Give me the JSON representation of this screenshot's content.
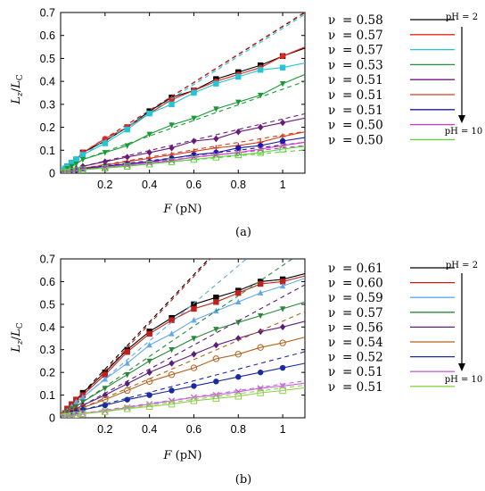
{
  "chart_data": [
    {
      "type": "scatter",
      "panel_label": "(a)",
      "xlabel": "F (pN)",
      "ylabel": "Lz/LC",
      "xlim": [
        0,
        1.1
      ],
      "ylim": [
        0,
        0.7
      ],
      "xticks": [
        "0.2",
        "0.4",
        "0.6",
        "0.8",
        "1"
      ],
      "yticks": [
        "0",
        "0.1",
        "0.2",
        "0.3",
        "0.4",
        "0.5",
        "0.6",
        "0.7"
      ],
      "legend_prefix": "ν",
      "ph_top": "pH = 2",
      "ph_bottom": "pH = 10",
      "x": [
        0.01,
        0.02,
        0.03,
        0.05,
        0.07,
        0.1,
        0.2,
        0.3,
        0.4,
        0.5,
        0.6,
        0.7,
        0.8,
        0.9,
        1.0
      ],
      "series": [
        {
          "name": "= 0.58",
          "nu": 0.58,
          "color": "#000000",
          "marker": "square",
          "values": [
            0.01,
            0.02,
            0.03,
            0.045,
            0.06,
            0.09,
            0.14,
            0.2,
            0.27,
            0.33,
            0.36,
            0.41,
            0.44,
            0.47,
            0.51
          ]
        },
        {
          "name": "= 0.57",
          "nu": 0.57,
          "color": "#e8241c",
          "marker": "circle",
          "values": [
            0.01,
            0.02,
            0.03,
            0.045,
            0.06,
            0.09,
            0.15,
            0.2,
            0.26,
            0.32,
            0.36,
            0.4,
            0.43,
            0.46,
            0.51
          ]
        },
        {
          "name": "= 0.57",
          "nu": 0.57,
          "color": "#22c6d6",
          "marker": "square",
          "values": [
            0.01,
            0.02,
            0.03,
            0.045,
            0.06,
            0.08,
            0.13,
            0.19,
            0.26,
            0.3,
            0.35,
            0.39,
            0.42,
            0.45,
            0.46
          ]
        },
        {
          "name": "= 0.53",
          "nu": 0.53,
          "color": "#1a9a35",
          "marker": "triangle-down",
          "values": [
            0.005,
            0.01,
            0.02,
            0.03,
            0.04,
            0.06,
            0.09,
            0.12,
            0.17,
            0.21,
            0.24,
            0.28,
            0.31,
            0.34,
            0.39
          ]
        },
        {
          "name": "= 0.51",
          "nu": 0.51,
          "color": "#6a1b7a",
          "marker": "diamond",
          "values": [
            0.003,
            0.006,
            0.01,
            0.015,
            0.02,
            0.03,
            0.05,
            0.07,
            0.09,
            0.11,
            0.14,
            0.15,
            0.18,
            0.2,
            0.22
          ]
        },
        {
          "name": "= 0.51",
          "nu": 0.51,
          "color": "#d0401e",
          "marker": "plus",
          "values": [
            0.002,
            0.005,
            0.008,
            0.012,
            0.016,
            0.022,
            0.035,
            0.05,
            0.065,
            0.08,
            0.095,
            0.11,
            0.12,
            0.135,
            0.16
          ]
        },
        {
          "name": "= 0.51",
          "nu": 0.51,
          "color": "#1a1aa6",
          "marker": "circle",
          "values": [
            0.002,
            0.004,
            0.007,
            0.01,
            0.014,
            0.02,
            0.03,
            0.04,
            0.05,
            0.065,
            0.08,
            0.09,
            0.11,
            0.12,
            0.14
          ]
        },
        {
          "name": "= 0.50",
          "nu": 0.5,
          "color": "#d233d2",
          "marker": "x",
          "values": [
            0.002,
            0.004,
            0.006,
            0.009,
            0.012,
            0.017,
            0.025,
            0.035,
            0.045,
            0.055,
            0.07,
            0.08,
            0.09,
            0.105,
            0.12
          ]
        },
        {
          "name": "= 0.50",
          "nu": 0.5,
          "color": "#5ad43a",
          "marker": "square-open",
          "values": [
            0.002,
            0.004,
            0.006,
            0.008,
            0.011,
            0.015,
            0.022,
            0.03,
            0.04,
            0.05,
            0.06,
            0.07,
            0.08,
            0.09,
            0.105
          ]
        }
      ]
    },
    {
      "type": "scatter",
      "panel_label": "(b)",
      "xlabel": "F (pN)",
      "ylabel": "Lz/LC",
      "xlim": [
        0,
        1.1
      ],
      "ylim": [
        0,
        0.7
      ],
      "xticks": [
        "0.2",
        "0.4",
        "0.6",
        "0.8",
        "1"
      ],
      "yticks": [
        "0",
        "0.1",
        "0.2",
        "0.3",
        "0.4",
        "0.5",
        "0.6",
        "0.7"
      ],
      "legend_prefix": "ν",
      "ph_top": "pH = 2",
      "ph_bottom": "pH = 10",
      "x": [
        0.01,
        0.02,
        0.03,
        0.05,
        0.07,
        0.1,
        0.2,
        0.3,
        0.4,
        0.5,
        0.6,
        0.7,
        0.8,
        0.9,
        1.0
      ],
      "series": [
        {
          "name": "= 0.61",
          "nu": 0.61,
          "color": "#000000",
          "marker": "square",
          "values": [
            0.01,
            0.02,
            0.04,
            0.06,
            0.08,
            0.11,
            0.2,
            0.3,
            0.38,
            0.44,
            0.5,
            0.53,
            0.56,
            0.6,
            0.61
          ]
        },
        {
          "name": "= 0.60",
          "nu": 0.6,
          "color": "#c0201a",
          "marker": "square",
          "values": [
            0.01,
            0.02,
            0.04,
            0.06,
            0.08,
            0.1,
            0.19,
            0.29,
            0.37,
            0.43,
            0.48,
            0.51,
            0.55,
            0.59,
            0.6
          ]
        },
        {
          "name": "= 0.59",
          "nu": 0.59,
          "color": "#62a8e8",
          "marker": "triangle-up",
          "values": [
            0.01,
            0.02,
            0.03,
            0.05,
            0.07,
            0.09,
            0.17,
            0.24,
            0.32,
            0.37,
            0.43,
            0.47,
            0.51,
            0.55,
            0.58
          ]
        },
        {
          "name": "= 0.57",
          "nu": 0.57,
          "color": "#2a8a3a",
          "marker": "triangle-down",
          "values": [
            0.008,
            0.015,
            0.025,
            0.04,
            0.05,
            0.07,
            0.13,
            0.19,
            0.25,
            0.3,
            0.35,
            0.39,
            0.42,
            0.45,
            0.48
          ]
        },
        {
          "name": "= 0.56",
          "nu": 0.56,
          "color": "#5a1f7a",
          "marker": "diamond",
          "values": [
            0.006,
            0.012,
            0.02,
            0.03,
            0.04,
            0.055,
            0.1,
            0.15,
            0.2,
            0.24,
            0.28,
            0.32,
            0.35,
            0.38,
            0.4
          ]
        },
        {
          "name": "= 0.54",
          "nu": 0.54,
          "color": "#b3621f",
          "marker": "circle-open",
          "values": [
            0.005,
            0.01,
            0.015,
            0.025,
            0.035,
            0.045,
            0.08,
            0.12,
            0.16,
            0.19,
            0.22,
            0.26,
            0.28,
            0.31,
            0.33
          ]
        },
        {
          "name": "= 0.52",
          "nu": 0.52,
          "color": "#1a2aa0",
          "marker": "circle",
          "values": [
            0.004,
            0.008,
            0.012,
            0.018,
            0.025,
            0.035,
            0.055,
            0.08,
            0.1,
            0.12,
            0.14,
            0.16,
            0.18,
            0.2,
            0.22
          ]
        },
        {
          "name": "= 0.51",
          "nu": 0.51,
          "color": "#c864e0",
          "marker": "x",
          "values": [
            0.003,
            0.005,
            0.008,
            0.011,
            0.015,
            0.02,
            0.03,
            0.045,
            0.06,
            0.075,
            0.09,
            0.1,
            0.115,
            0.13,
            0.14
          ]
        },
        {
          "name": "= 0.51",
          "nu": 0.51,
          "color": "#8fd04a",
          "marker": "square-open",
          "values": [
            0.003,
            0.005,
            0.007,
            0.01,
            0.013,
            0.018,
            0.027,
            0.04,
            0.05,
            0.06,
            0.075,
            0.085,
            0.095,
            0.11,
            0.12
          ]
        }
      ]
    }
  ]
}
